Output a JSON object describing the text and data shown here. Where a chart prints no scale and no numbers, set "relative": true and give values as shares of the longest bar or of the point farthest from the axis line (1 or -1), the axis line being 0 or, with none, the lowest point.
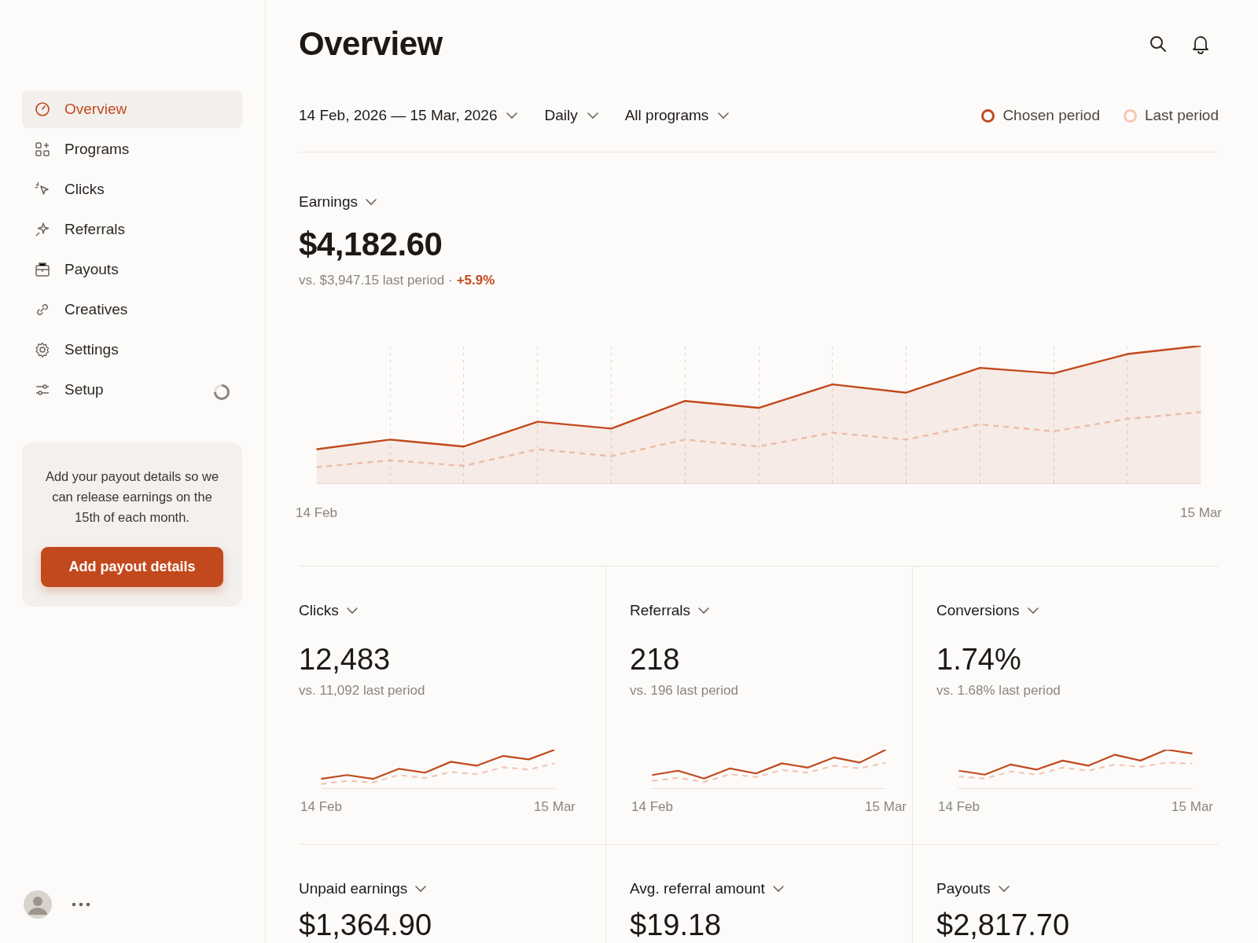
{
  "chart_data": [
    {
      "type": "other",
      "title": "Overview",
      "annotations": [
        "14 Feb, 2026 — 15 Mar, 2026",
        "Daily",
        "All programs"
      ]
    },
    {
      "type": "other",
      "annotations": [
        "Overview",
        "Programs",
        "Clicks",
        "Referrals",
        "Payouts",
        "Creatives",
        "Settings",
        "Setup"
      ]
    },
    {
      "type": "other",
      "annotations": [
        "Add your payout details so we can release earnings on the 15th of each month.",
        "Add payout details"
      ]
    },
    {
      "type": "line",
      "title": "Earnings",
      "subtitle": "$4,182.60",
      "annotations": [
        "vs. $3,947.15 last period ·",
        "+5.9%"
      ],
      "relative": true,
      "grid": "x",
      "legend": "top right",
      "marker": "none",
      "categories": [
        "14 Feb",
        null,
        null,
        null,
        null,
        null,
        null,
        null,
        null,
        null,
        null,
        null,
        "15 Mar"
      ],
      "series": [
        {
          "name": "Chosen period",
          "type": "area",
          "color": "#c2491d",
          "line_style": "solid",
          "values": [
            0.25,
            0.32,
            0.27,
            0.45,
            0.4,
            0.6,
            0.55,
            0.72,
            0.66,
            0.84,
            0.8,
            0.94,
            1
          ]
        },
        {
          "name": "Last period",
          "type": "line",
          "color": "#f2c7b4",
          "line_style": "dashed",
          "values": [
            0.12,
            0.17,
            0.13,
            0.25,
            0.2,
            0.32,
            0.27,
            0.37,
            0.32,
            0.43,
            0.38,
            0.47,
            0.52
          ]
        }
      ]
    },
    {
      "type": "line",
      "title": "Clicks",
      "subtitle": "12,483",
      "annotations": [
        "vs. 11,092 last period"
      ],
      "relative": true,
      "marker": "none",
      "categories": [
        "14 Feb",
        null,
        null,
        null,
        null,
        null,
        null,
        null,
        null,
        "15 Mar"
      ],
      "series": [
        {
          "color": "#c2491d",
          "line_style": "solid",
          "values": [
            0.25,
            0.35,
            0.25,
            0.51,
            0.41,
            0.69,
            0.59,
            0.84,
            0.75,
            1
          ]
        },
        {
          "color": "#f2c7b4",
          "line_style": "dashed",
          "values": [
            0.12,
            0.2,
            0.16,
            0.35,
            0.27,
            0.43,
            0.37,
            0.55,
            0.49,
            0.65
          ]
        }
      ]
    },
    {
      "type": "line",
      "title": "Referrals",
      "subtitle": "218",
      "annotations": [
        "vs. 196 last period"
      ],
      "relative": true,
      "marker": "none",
      "categories": [
        "14 Feb",
        null,
        null,
        null,
        null,
        null,
        null,
        null,
        null,
        "15 Mar"
      ],
      "series": [
        {
          "color": "#c2491d",
          "line_style": "solid",
          "values": [
            0.35,
            0.46,
            0.26,
            0.52,
            0.39,
            0.65,
            0.54,
            0.8,
            0.67,
            1
          ]
        },
        {
          "color": "#f2c7b4",
          "line_style": "dashed",
          "values": [
            0.2,
            0.28,
            0.17,
            0.37,
            0.3,
            0.48,
            0.41,
            0.59,
            0.52,
            0.67
          ]
        }
      ]
    },
    {
      "type": "line",
      "title": "Conversions",
      "subtitle": "1.74%",
      "annotations": [
        "vs. 1.68% last period"
      ],
      "relative": true,
      "marker": "none",
      "categories": [
        "14 Feb",
        null,
        null,
        null,
        null,
        null,
        null,
        null,
        null,
        "15 Mar"
      ],
      "series": [
        {
          "color": "#c2491d",
          "line_style": "solid",
          "values": [
            0.46,
            0.36,
            0.62,
            0.49,
            0.72,
            0.59,
            0.87,
            0.72,
            1,
            0.9
          ]
        },
        {
          "color": "#f2c7b4",
          "line_style": "dashed",
          "values": [
            0.31,
            0.26,
            0.44,
            0.36,
            0.54,
            0.46,
            0.62,
            0.56,
            0.67,
            0.64
          ]
        }
      ]
    },
    {
      "type": "other",
      "title": "Unpaid earnings",
      "subtitle": "$1,364.90"
    },
    {
      "type": "other",
      "title": "Avg. referral amount",
      "subtitle": "$19.18"
    },
    {
      "type": "other",
      "title": "Payouts",
      "subtitle": "$2,817.70"
    }
  ]
}
